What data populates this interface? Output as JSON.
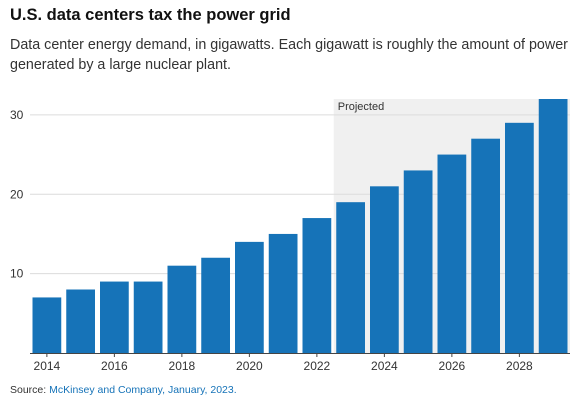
{
  "header": {
    "title": "U.S. data centers tax the power grid",
    "subtitle": "Data center energy demand, in gigawatts. Each gigawatt is roughly the amount of power generated by a large nuclear plant."
  },
  "source": {
    "label": "Source:",
    "link_text": "McKinsey and Company, January, 2023."
  },
  "colors": {
    "bar": "#1673b8",
    "projected_band": "#f0f0f0",
    "link": "#1673b8"
  },
  "chart_data": {
    "type": "bar",
    "title": "U.S. data centers tax the power grid",
    "subtitle": "Data center energy demand, in gigawatts. Each gigawatt is roughly the amount of power generated by a large nuclear plant.",
    "xlabel": "",
    "ylabel": "",
    "x": [
      2014,
      2015,
      2016,
      2017,
      2018,
      2019,
      2020,
      2021,
      2022,
      2023,
      2024,
      2025,
      2026,
      2027,
      2028,
      2029
    ],
    "values": [
      7,
      8,
      9,
      9,
      11,
      12,
      14,
      15,
      17,
      19,
      21,
      23,
      25,
      27,
      29,
      32
    ],
    "ylim": [
      0,
      32
    ],
    "yticks": [
      10,
      20,
      30
    ],
    "xtick_labels": [
      "2014",
      "2016",
      "2018",
      "2020",
      "2022",
      "2024",
      "2026",
      "2028"
    ],
    "xtick_values": [
      2014,
      2016,
      2018,
      2020,
      2022,
      2024,
      2026,
      2028
    ],
    "grid": true,
    "annotations": [
      {
        "text": "Projected",
        "x_start": 2022.5,
        "x_end": 2029.5
      }
    ]
  }
}
